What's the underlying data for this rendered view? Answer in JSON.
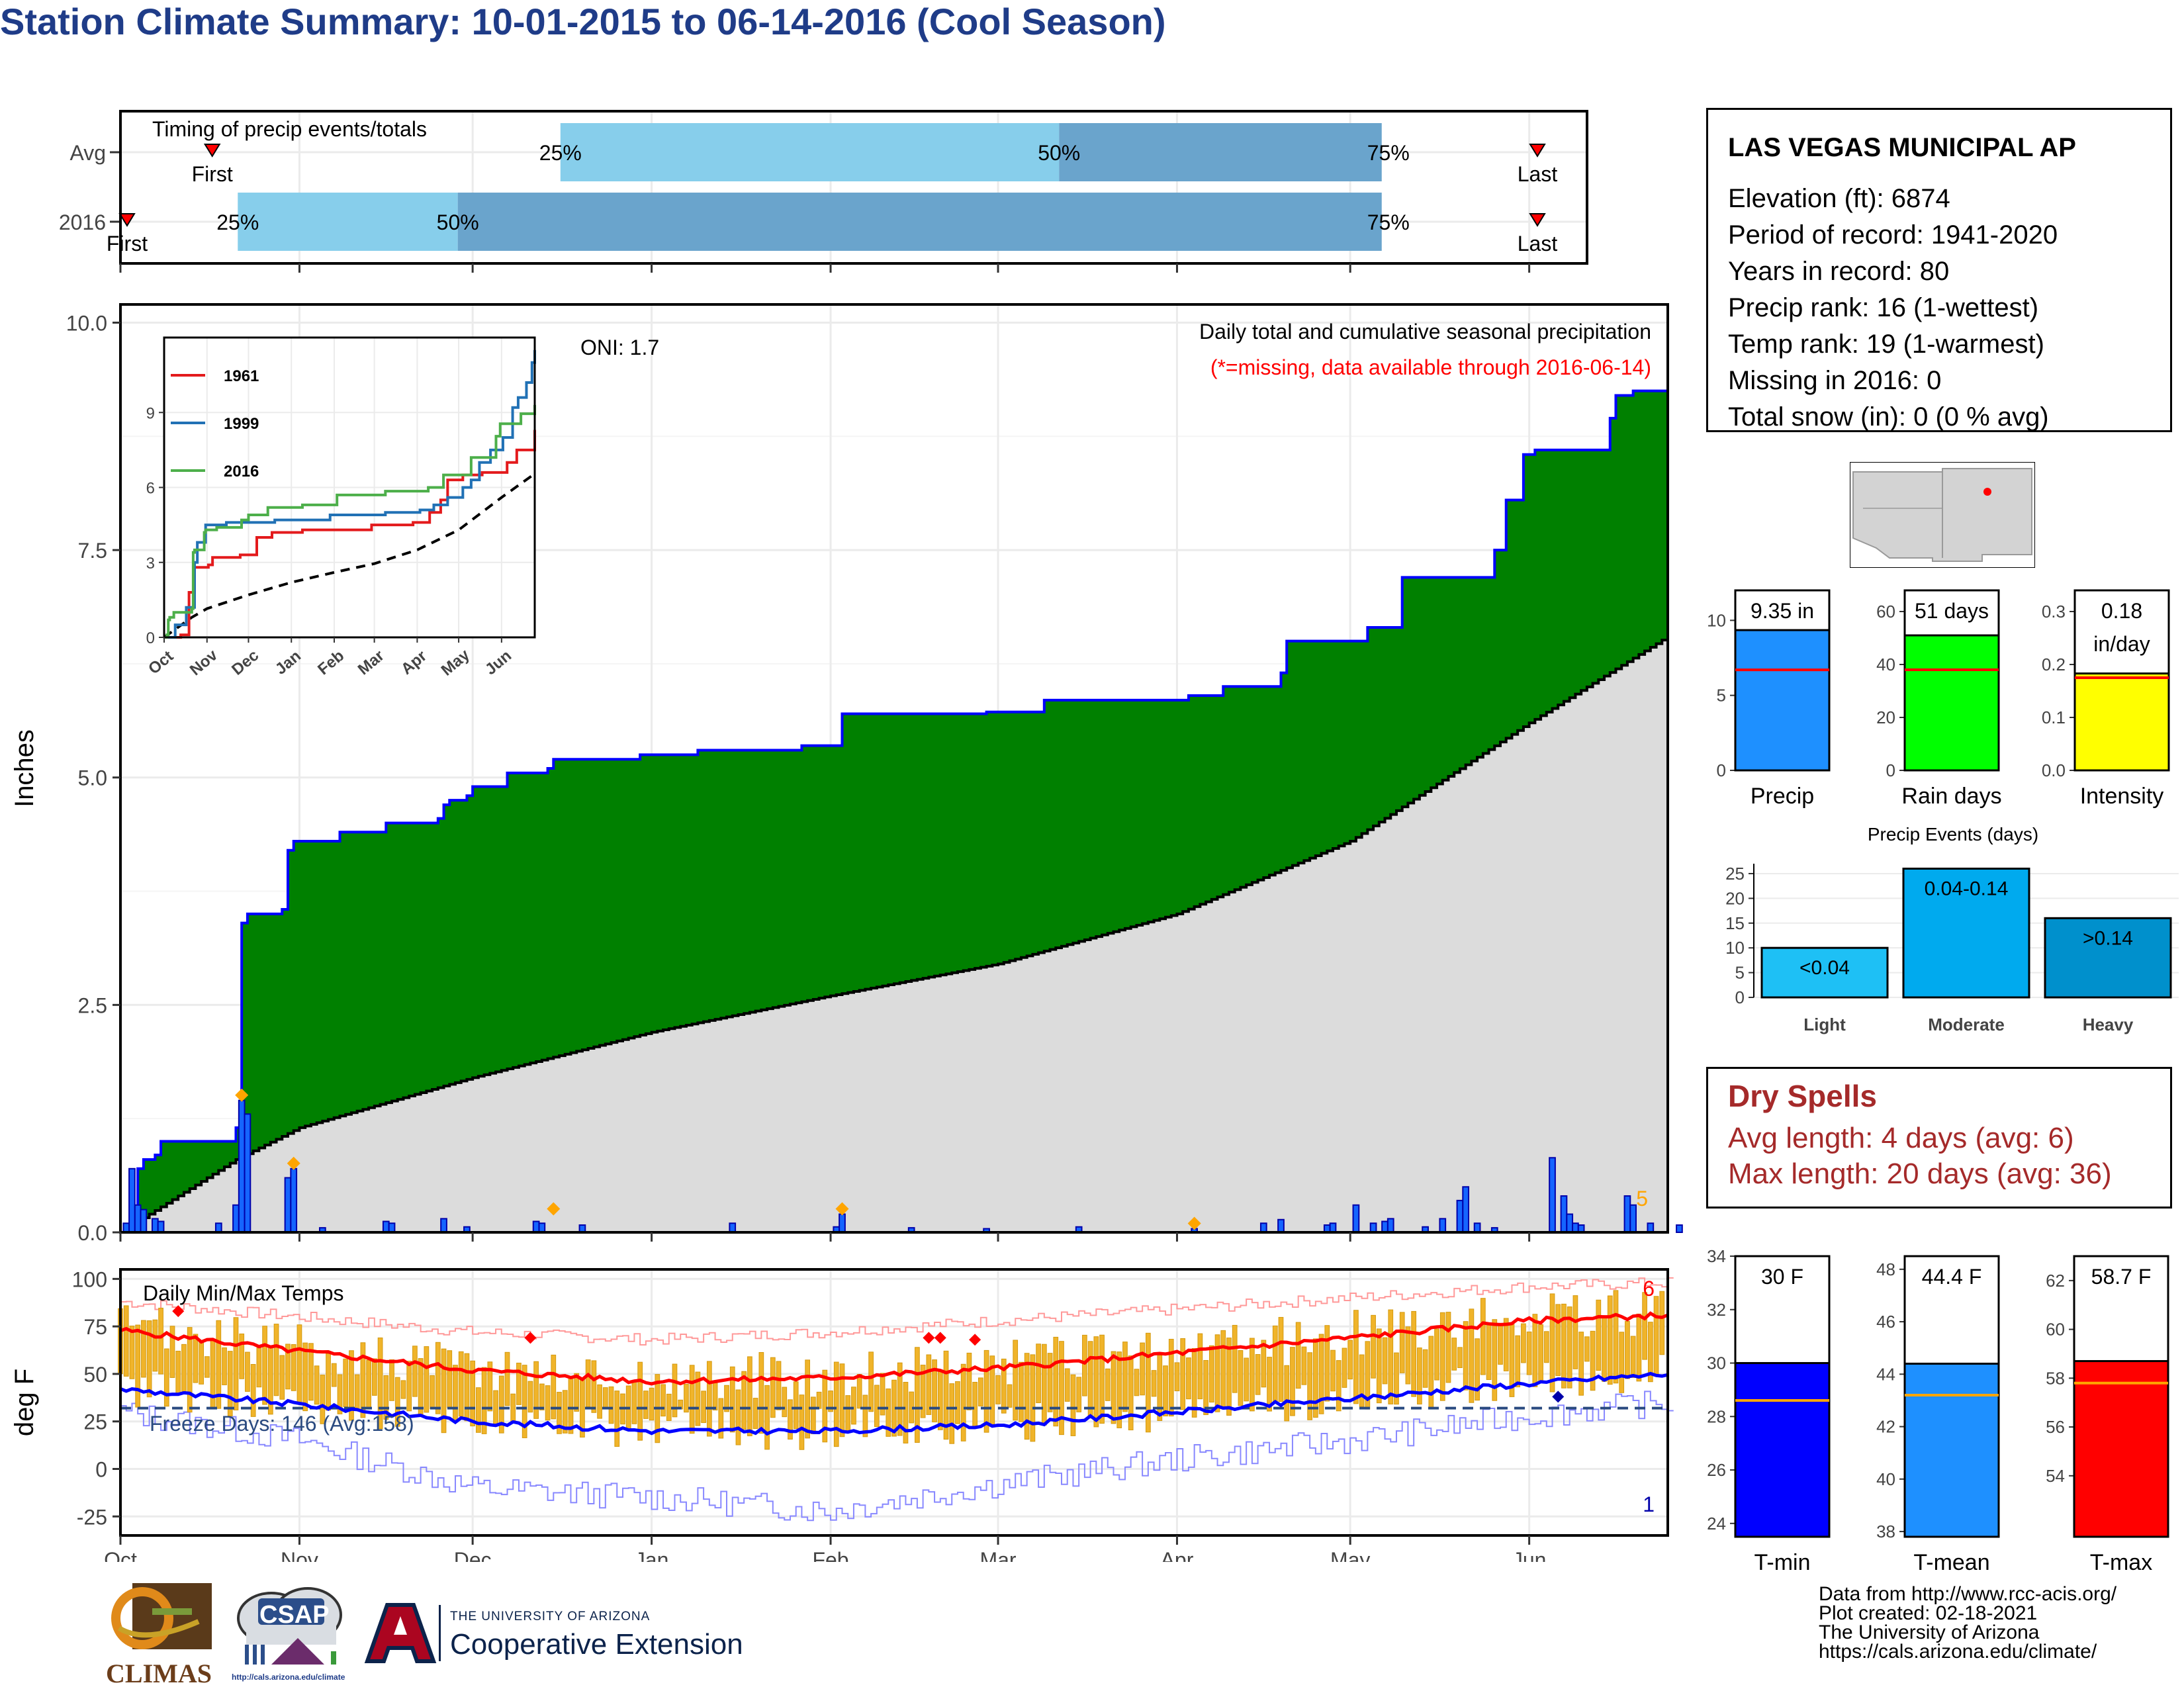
{
  "title": "Station Climate Summary: 10-01-2015 to 06-14-2016 (Cool Season)",
  "timing": {
    "label": "Timing of precip events/totals",
    "rows": [
      {
        "name": "Avg",
        "q25": 0.3,
        "q50": 0.64,
        "q75": 0.86,
        "first_label": "First",
        "last_label": "Last",
        "first_pos": 0.031,
        "last_pos": 1.0
      },
      {
        "name": "2016",
        "q25": 0.08,
        "q50": 0.23,
        "q75": 0.86,
        "first_label": "First",
        "last_label": "Last",
        "first_pos": 0.0,
        "last_pos": 1.0
      }
    ],
    "pct_labels": [
      "25%",
      "50%",
      "75%"
    ],
    "colors": {
      "light": "#87ceeb",
      "dark": "#6aa4cc",
      "marker": "#ff0000"
    }
  },
  "info": {
    "station": "LAS VEGAS MUNICIPAL AP",
    "lines": [
      "Elevation (ft): 6874",
      "Period of record: 1941-2020",
      "Years in record: 80",
      "Precip rank: 16 (1-wettest)",
      "Temp rank: 19 (1-warmest)",
      "Missing in 2016: 0",
      "Total snow (in): 0 (0 % avg)"
    ]
  },
  "chart_data": [
    {
      "type": "area",
      "title": "Daily total and cumulative seasonal precipitation",
      "subtitle": "(*=missing, data available through 2016-06-14)",
      "oni": "ONI: 1.7",
      "ylabel": "Inches",
      "ylim": [
        0,
        10
      ],
      "y_ticks": [
        "0.0",
        "2.5",
        "5.0",
        "7.5",
        "10.0"
      ],
      "x_ticks": [
        "Oct",
        "Nov",
        "Dec",
        "Jan",
        "Feb",
        "Mar",
        "Apr",
        "May",
        "Jun"
      ],
      "x_tick_days": [
        0,
        31,
        61,
        92,
        123,
        152,
        183,
        213,
        244
      ],
      "n_days": 258,
      "corner_count": "5",
      "cumulative_2016": [
        [
          0,
          0
        ],
        [
          2,
          0.1
        ],
        [
          3,
          0.7
        ],
        [
          4,
          0.8
        ],
        [
          6,
          0.85
        ],
        [
          7,
          1.0
        ],
        [
          19,
          1.0
        ],
        [
          20,
          1.15
        ],
        [
          21,
          3.4
        ],
        [
          22,
          3.5
        ],
        [
          27,
          3.5
        ],
        [
          28,
          3.55
        ],
        [
          29,
          4.2
        ],
        [
          30,
          4.3
        ],
        [
          37,
          4.3
        ],
        [
          38,
          4.4
        ],
        [
          45,
          4.4
        ],
        [
          46,
          4.5
        ],
        [
          55,
          4.55
        ],
        [
          56,
          4.7
        ],
        [
          57,
          4.75
        ],
        [
          60,
          4.8
        ],
        [
          61,
          4.9
        ],
        [
          65,
          4.9
        ],
        [
          67,
          5.05
        ],
        [
          74,
          5.1
        ],
        [
          75,
          5.2
        ],
        [
          90,
          5.25
        ],
        [
          100,
          5.3
        ],
        [
          118,
          5.35
        ],
        [
          125,
          5.7
        ],
        [
          150,
          5.72
        ],
        [
          160,
          5.85
        ],
        [
          185,
          5.9
        ],
        [
          191,
          6.0
        ],
        [
          201,
          6.15
        ],
        [
          202,
          6.5
        ],
        [
          216,
          6.65
        ],
        [
          222,
          7.2
        ],
        [
          238,
          7.5
        ],
        [
          240,
          8.05
        ],
        [
          243,
          8.55
        ],
        [
          245,
          8.6
        ],
        [
          258,
          8.95
        ],
        [
          259,
          9.2
        ],
        [
          262,
          9.25
        ],
        [
          268,
          9.3
        ]
      ],
      "average_cumulative": [
        [
          0,
          0
        ],
        [
          20,
          0.8
        ],
        [
          31,
          1.15
        ],
        [
          61,
          1.7
        ],
        [
          92,
          2.2
        ],
        [
          123,
          2.6
        ],
        [
          152,
          2.95
        ],
        [
          183,
          3.5
        ],
        [
          213,
          4.3
        ],
        [
          244,
          5.6
        ],
        [
          268,
          6.55
        ]
      ],
      "daily_precip": [
        [
          1,
          0.1
        ],
        [
          2,
          0.7
        ],
        [
          3,
          0.3
        ],
        [
          4,
          0.25
        ],
        [
          6,
          0.15
        ],
        [
          7,
          0.12
        ],
        [
          17,
          0.1
        ],
        [
          20,
          0.3
        ],
        [
          21,
          1.45
        ],
        [
          22,
          1.3
        ],
        [
          29,
          0.6
        ],
        [
          30,
          0.7
        ],
        [
          35,
          0.05
        ],
        [
          46,
          0.12
        ],
        [
          47,
          0.1
        ],
        [
          56,
          0.15
        ],
        [
          60,
          0.06
        ],
        [
          72,
          0.12
        ],
        [
          73,
          0.1
        ],
        [
          80,
          0.08
        ],
        [
          106,
          0.1
        ],
        [
          124,
          0.06
        ],
        [
          125,
          0.2
        ],
        [
          137,
          0.05
        ],
        [
          150,
          0.04
        ],
        [
          166,
          0.06
        ],
        [
          186,
          0.04
        ],
        [
          198,
          0.1
        ],
        [
          201,
          0.14
        ],
        [
          209,
          0.08
        ],
        [
          210,
          0.1
        ],
        [
          214,
          0.3
        ],
        [
          217,
          0.1
        ],
        [
          219,
          0.12
        ],
        [
          220,
          0.15
        ],
        [
          226,
          0.06
        ],
        [
          229,
          0.15
        ],
        [
          232,
          0.35
        ],
        [
          233,
          0.5
        ],
        [
          235,
          0.1
        ],
        [
          238,
          0.05
        ],
        [
          248,
          0.82
        ],
        [
          250,
          0.4
        ],
        [
          251,
          0.2
        ],
        [
          252,
          0.1
        ],
        [
          253,
          0.08
        ],
        [
          261,
          0.4
        ],
        [
          262,
          0.3
        ],
        [
          265,
          0.1
        ],
        [
          270,
          0.08
        ]
      ],
      "daily_markers_orange": [
        21,
        30,
        75,
        125,
        186
      ],
      "colors": {
        "fill_2016": "#008000",
        "line_2016": "#0000ff",
        "avg_fill": "#dcdcdc",
        "bars": "#1565ff",
        "marker": "#ffa500"
      },
      "inset": {
        "legend": [
          "1961",
          "1999",
          "2016"
        ],
        "legend_colors": [
          "#e31a1c",
          "#2171b5",
          "#4daf4a"
        ],
        "y_ticks": [
          "0",
          "3",
          "6",
          "9"
        ],
        "x_ticks": [
          "Oct",
          "Nov",
          "Dec",
          "Jan",
          "Feb",
          "Mar",
          "Apr",
          "May",
          "Jun"
        ],
        "ylim": [
          0,
          12
        ],
        "series_1961": [
          [
            0,
            0
          ],
          [
            12,
            0.1
          ],
          [
            18,
            1.8
          ],
          [
            22,
            2.8
          ],
          [
            32,
            2.9
          ],
          [
            35,
            3.2
          ],
          [
            55,
            3.3
          ],
          [
            67,
            4.0
          ],
          [
            78,
            4.2
          ],
          [
            100,
            4.3
          ],
          [
            150,
            4.5
          ],
          [
            180,
            4.6
          ],
          [
            192,
            5.0
          ],
          [
            200,
            5.5
          ],
          [
            205,
            6.3
          ],
          [
            216,
            6.5
          ],
          [
            230,
            6.6
          ],
          [
            248,
            7.0
          ],
          [
            255,
            7.5
          ],
          [
            268,
            8.3
          ]
        ],
        "series_1999": [
          [
            0,
            0
          ],
          [
            8,
            0.5
          ],
          [
            16,
            1.2
          ],
          [
            22,
            3.0
          ],
          [
            24,
            3.8
          ],
          [
            30,
            4.5
          ],
          [
            45,
            4.6
          ],
          [
            80,
            4.7
          ],
          [
            120,
            4.9
          ],
          [
            160,
            5.0
          ],
          [
            185,
            5.1
          ],
          [
            195,
            5.3
          ],
          [
            205,
            5.6
          ],
          [
            216,
            6.0
          ],
          [
            222,
            6.3
          ],
          [
            228,
            7.0
          ],
          [
            236,
            7.5
          ],
          [
            245,
            8.0
          ],
          [
            252,
            9.2
          ],
          [
            256,
            9.6
          ],
          [
            262,
            10.2
          ],
          [
            266,
            11.0
          ],
          [
            268,
            11.5
          ]
        ],
        "series_2016": [
          [
            0,
            0
          ],
          [
            2,
            0.1
          ],
          [
            3,
            0.7
          ],
          [
            4,
            0.8
          ],
          [
            7,
            1.0
          ],
          [
            20,
            1.15
          ],
          [
            21,
            3.4
          ],
          [
            22,
            3.5
          ],
          [
            29,
            4.2
          ],
          [
            30,
            4.3
          ],
          [
            38,
            4.4
          ],
          [
            56,
            4.7
          ],
          [
            61,
            4.9
          ],
          [
            75,
            5.2
          ],
          [
            100,
            5.3
          ],
          [
            125,
            5.7
          ],
          [
            160,
            5.85
          ],
          [
            191,
            6.0
          ],
          [
            202,
            6.5
          ],
          [
            222,
            7.2
          ],
          [
            240,
            8.05
          ],
          [
            243,
            8.55
          ],
          [
            258,
            8.95
          ],
          [
            268,
            9.3
          ]
        ],
        "series_avg": [
          [
            0,
            0
          ],
          [
            20,
            0.8
          ],
          [
            31,
            1.15
          ],
          [
            61,
            1.7
          ],
          [
            92,
            2.2
          ],
          [
            123,
            2.6
          ],
          [
            152,
            2.95
          ],
          [
            183,
            3.5
          ],
          [
            213,
            4.3
          ],
          [
            244,
            5.6
          ],
          [
            268,
            6.55
          ]
        ]
      }
    },
    {
      "type": "bar",
      "title": "Daily Min/Max Temps",
      "ylabel": "deg F",
      "ylim": [
        -35,
        105
      ],
      "y_ticks": [
        "100",
        "75",
        "50",
        "25",
        "0",
        "-25"
      ],
      "x_ticks": [
        "Oct",
        "Nov",
        "Dec",
        "Jan",
        "Feb",
        "Mar",
        "Apr",
        "May",
        "Jun"
      ],
      "freeze_label": "Freeze Days: 146 (Avg:158)",
      "freeze_line": 32,
      "corner_top": "6",
      "corner_bottom": "1",
      "avg_max": [
        [
          0,
          73
        ],
        [
          31,
          62
        ],
        [
          61,
          52
        ],
        [
          92,
          46
        ],
        [
          123,
          48
        ],
        [
          152,
          53
        ],
        [
          183,
          61
        ],
        [
          213,
          69
        ],
        [
          244,
          78
        ],
        [
          268,
          81
        ]
      ],
      "avg_min": [
        [
          0,
          42
        ],
        [
          31,
          34
        ],
        [
          61,
          25
        ],
        [
          92,
          20
        ],
        [
          123,
          20
        ],
        [
          152,
          23
        ],
        [
          183,
          30
        ],
        [
          213,
          37
        ],
        [
          244,
          45
        ],
        [
          268,
          50
        ]
      ],
      "record_max": [
        [
          0,
          88
        ],
        [
          31,
          80
        ],
        [
          61,
          72
        ],
        [
          92,
          68
        ],
        [
          123,
          72
        ],
        [
          152,
          78
        ],
        [
          183,
          84
        ],
        [
          213,
          90
        ],
        [
          244,
          96
        ],
        [
          268,
          98
        ]
      ],
      "record_min": [
        [
          0,
          30
        ],
        [
          31,
          15
        ],
        [
          61,
          -10
        ],
        [
          92,
          -15
        ],
        [
          123,
          -22
        ],
        [
          152,
          -8
        ],
        [
          183,
          5
        ],
        [
          213,
          15
        ],
        [
          244,
          28
        ],
        [
          268,
          35
        ]
      ],
      "red_markers": [
        [
          10,
          83
        ],
        [
          71,
          69
        ],
        [
          140,
          69
        ],
        [
          142,
          69
        ],
        [
          148,
          68
        ]
      ],
      "blue_markers": [
        [
          249,
          38
        ]
      ],
      "colors": {
        "bars": "#f0b42a",
        "bar_edge": "#d49a10",
        "avg_max": "#ff0000",
        "avg_min": "#0000ff",
        "rec_max": "#ff9999",
        "rec_min": "#8888ff",
        "freeze": "#2a4a80"
      }
    },
    {
      "type": "bar",
      "title": "Precip",
      "label": "9.35 in",
      "value": 9.35,
      "avg": 6.7,
      "ylim": [
        0,
        12
      ],
      "y_ticks": [
        "0",
        "5",
        "10"
      ],
      "color": "#1e90ff"
    },
    {
      "type": "bar",
      "title": "Rain days",
      "label": "51 days",
      "value": 51,
      "avg": 38,
      "ylim": [
        0,
        68
      ],
      "y_ticks": [
        "0",
        "20",
        "40",
        "60"
      ],
      "color": "#00ff00"
    },
    {
      "type": "bar",
      "title": "Intensity",
      "label_lines": [
        "0.18",
        "in/day"
      ],
      "value": 0.183,
      "avg": 0.175,
      "ylim": [
        0,
        0.34
      ],
      "y_ticks": [
        "0.0",
        "0.1",
        "0.2",
        "0.3"
      ],
      "color": "#ffff00"
    },
    {
      "type": "bar",
      "title": "Precip Events (days)",
      "categories": [
        "Light",
        "Moderate",
        "Heavy"
      ],
      "values": [
        10,
        26,
        16
      ],
      "bar_labels": [
        "<0.04",
        "0.04-0.14",
        ">0.14"
      ],
      "ylim": [
        0,
        27
      ],
      "y_ticks": [
        "0",
        "5",
        "10",
        "15",
        "20",
        "25"
      ],
      "colors": [
        "#1ec0f5",
        "#00aaee",
        "#0090cc"
      ]
    },
    {
      "type": "bar",
      "title": "T-min",
      "label": "30 F",
      "value": 30,
      "avg": 28.6,
      "ylim": [
        23.5,
        34
      ],
      "y_ticks": [
        "24",
        "26",
        "28",
        "30",
        "32",
        "34"
      ],
      "color": "#0000ff"
    },
    {
      "type": "bar",
      "title": "T-mean",
      "label": "44.4 F",
      "value": 44.4,
      "avg": 43.2,
      "ylim": [
        37.8,
        48.5
      ],
      "y_ticks": [
        "38",
        "40",
        "42",
        "44",
        "46",
        "48"
      ],
      "color": "#1e90ff"
    },
    {
      "type": "bar",
      "title": "T-max",
      "label": "58.7 F",
      "value": 58.7,
      "avg": 57.8,
      "ylim": [
        51.5,
        63
      ],
      "y_ticks": [
        "54",
        "56",
        "58",
        "60",
        "62"
      ],
      "color": "#ff0000"
    }
  ],
  "dry_spells": {
    "title": "Dry Spells",
    "avg_line": "Avg length: 4 days (avg: 6)",
    "max_line": "Max length: 20 days (avg: 36)"
  },
  "logos": {
    "climas": "CLIMAS",
    "csap": "CSAP",
    "csap_url": "http://cals.arizona.edu/climate",
    "ua_small": "THE UNIVERSITY OF ARIZONA",
    "ua_big": "Cooperative Extension"
  },
  "credits": [
    "Data from http://www.rcc-acis.org/",
    "Plot created: 02-18-2021",
    "The University of Arizona",
    "https://cals.arizona.edu/climate/"
  ]
}
